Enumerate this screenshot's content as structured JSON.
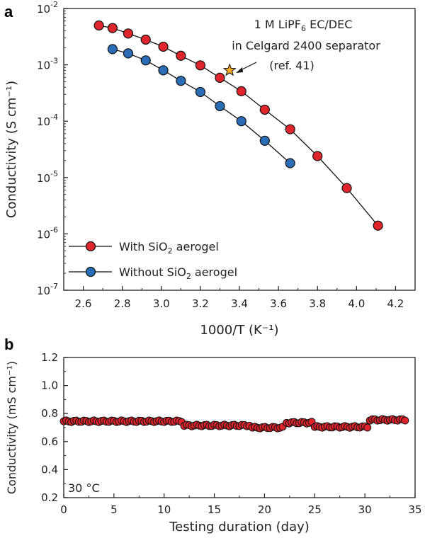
{
  "chart_data": [
    {
      "panel_label": "a",
      "type": "line",
      "xlabel": "1000/T (K⁻¹)",
      "ylabel": "Conductivity (S cm⁻¹)",
      "xlim": [
        2.5,
        4.3
      ],
      "ylim_log10": [
        -7,
        -2
      ],
      "y_scale": "log",
      "x_ticks": [
        "2.6",
        "2.8",
        "3.0",
        "3.2",
        "3.4",
        "3.6",
        "3.8",
        "4.0",
        "4.2"
      ],
      "x_tick_values": [
        2.6,
        2.8,
        3.0,
        3.2,
        3.4,
        3.6,
        3.8,
        4.0,
        4.2
      ],
      "y_tick_exponents": [
        "-2",
        "-3",
        "-4",
        "-5",
        "-6",
        "-7"
      ],
      "y_tick_base": "10",
      "legend_position": "bottom-left",
      "series": [
        {
          "name_pre": "With SiO",
          "name_sub": "2",
          "name_post": " aerogel",
          "color": "#e0242b",
          "x": [
            2.68,
            2.75,
            2.83,
            2.92,
            3.01,
            3.1,
            3.2,
            3.3,
            3.41,
            3.53,
            3.66,
            3.8,
            3.95,
            4.11
          ],
          "y": [
            0.005,
            0.0045,
            0.0036,
            0.0028,
            0.0021,
            0.00145,
            0.00098,
            0.00059,
            0.00034,
            0.00016,
            7.2e-05,
            2.4e-05,
            6.5e-06,
            1.4e-06
          ]
        },
        {
          "name_pre": "Without SiO",
          "name_sub": "2",
          "name_post": " aerogel",
          "color": "#2a6cb6",
          "x": [
            2.75,
            2.83,
            2.92,
            3.01,
            3.1,
            3.2,
            3.3,
            3.41,
            3.53,
            3.66
          ],
          "y": [
            0.0019,
            0.0016,
            0.0012,
            0.0008,
            0.00052,
            0.00033,
            0.000185,
            0.0001,
            4.5e-05,
            1.8e-05
          ]
        }
      ],
      "annotation": {
        "line1": "1 M LiPF",
        "line1_sub": "6",
        "line1_post": " EC/DEC",
        "line2": "in Celgard 2400 separator",
        "line3": "(ref. 41)",
        "point_x": 3.35,
        "point_y": 0.0008,
        "marker_color": "#f7a823"
      }
    },
    {
      "panel_label": "b",
      "type": "scatter",
      "xlabel": "Testing duration (day)",
      "ylabel": "Conductivity (mS cm⁻¹)",
      "xlim": [
        0,
        35
      ],
      "ylim": [
        0.2,
        1.2
      ],
      "x_ticks": [
        "0",
        "5",
        "10",
        "15",
        "20",
        "25",
        "30",
        "35"
      ],
      "x_tick_values": [
        0,
        5,
        10,
        15,
        20,
        25,
        30,
        35
      ],
      "y_ticks": [
        "0.2",
        "0.4",
        "0.6",
        "0.8",
        "1.0",
        "1.2"
      ],
      "y_tick_values": [
        0.2,
        0.4,
        0.6,
        0.8,
        1.0,
        1.2
      ],
      "annotation_text": "30 °C",
      "marker_color": "#e0242b",
      "segments": [
        {
          "x_start": 0.0,
          "x_end": 11.8,
          "y": 0.745
        },
        {
          "x_start": 12.0,
          "x_end": 18.6,
          "y": 0.715
        },
        {
          "x_start": 18.8,
          "x_end": 22.0,
          "y": 0.7
        },
        {
          "x_start": 22.2,
          "x_end": 24.8,
          "y": 0.735
        },
        {
          "x_start": 25.0,
          "x_end": 30.3,
          "y": 0.705
        },
        {
          "x_start": 30.5,
          "x_end": 34.0,
          "y": 0.755
        }
      ],
      "point_spacing_days": 0.25
    }
  ]
}
